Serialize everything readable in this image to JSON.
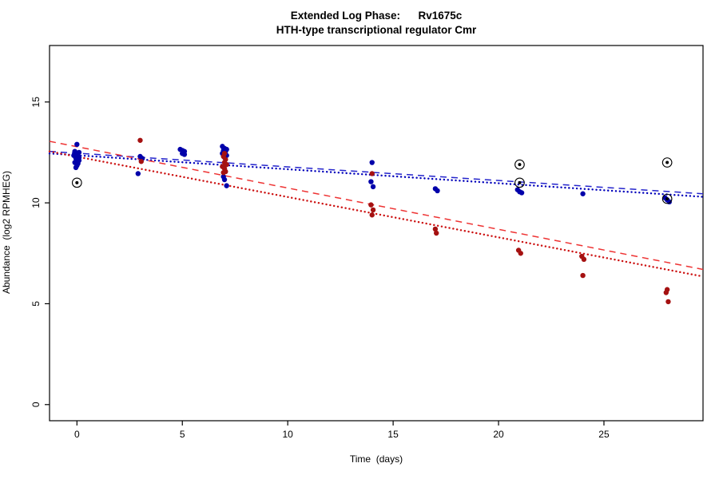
{
  "chart_data": {
    "type": "scatter",
    "title": "Extended Log Phase:      Rv1675c",
    "subtitle": "HTH-type transcriptional regulator Cmr",
    "xlabel": "Time  (days)",
    "ylabel": "Abundance  (log2 RPMHEG)",
    "xlim": [
      -1.3,
      29.7
    ],
    "ylim": [
      -0.8,
      17.8
    ],
    "xticks": [
      0,
      5,
      10,
      15,
      20,
      25
    ],
    "yticks": [
      0,
      5,
      10,
      15
    ],
    "grid": false,
    "legend": "none",
    "point_color_blue": "#0000AA",
    "point_color_red": "#A51111",
    "series": [
      {
        "name": "blue-condition",
        "color": "#0000AA",
        "points": [
          [
            0,
            12.9
          ],
          [
            -0.1,
            12.55
          ],
          [
            0.1,
            12.5
          ],
          [
            0,
            12.45
          ],
          [
            -0.15,
            12.35
          ],
          [
            0.05,
            12.3
          ],
          [
            0.1,
            12.25
          ],
          [
            -0.05,
            12.2
          ],
          [
            0,
            12.15
          ],
          [
            0.1,
            12.1
          ],
          [
            -0.1,
            12.0
          ],
          [
            0.05,
            11.95
          ],
          [
            0,
            11.85
          ],
          [
            -0.05,
            11.75
          ],
          [
            3,
            12.3
          ],
          [
            3.1,
            12.2
          ],
          [
            2.9,
            11.45
          ],
          [
            4.9,
            12.65
          ],
          [
            5,
            12.6
          ],
          [
            5.1,
            12.55
          ],
          [
            5,
            12.45
          ],
          [
            5.1,
            12.4
          ],
          [
            6.9,
            12.8
          ],
          [
            7,
            12.7
          ],
          [
            7.1,
            12.65
          ],
          [
            6.95,
            12.6
          ],
          [
            7.05,
            12.55
          ],
          [
            7,
            12.5
          ],
          [
            6.9,
            12.45
          ],
          [
            7.1,
            12.35
          ],
          [
            7,
            12.25
          ],
          [
            7.05,
            11.9
          ],
          [
            6.95,
            11.3
          ],
          [
            7,
            11.15
          ],
          [
            7.1,
            10.85
          ],
          [
            14,
            12.0
          ],
          [
            13.95,
            11.05
          ],
          [
            14.05,
            10.8
          ],
          [
            17,
            10.7
          ],
          [
            17.1,
            10.6
          ],
          [
            20.9,
            10.65
          ],
          [
            21,
            10.55
          ],
          [
            21.1,
            10.5
          ],
          [
            24,
            10.45
          ],
          [
            27.9,
            10.25
          ],
          [
            28,
            10.15
          ],
          [
            28.1,
            10.05
          ]
        ]
      },
      {
        "name": "red-condition",
        "color": "#A51111",
        "points": [
          [
            3,
            13.1
          ],
          [
            3.05,
            12.05
          ],
          [
            7,
            12.45
          ],
          [
            6.95,
            12.3
          ],
          [
            7.05,
            12.15
          ],
          [
            7,
            12.0
          ],
          [
            7.1,
            11.9
          ],
          [
            6.9,
            11.8
          ],
          [
            7,
            11.7
          ],
          [
            7.05,
            11.55
          ],
          [
            6.95,
            11.5
          ],
          [
            14,
            11.45
          ],
          [
            13.95,
            9.9
          ],
          [
            14.05,
            9.65
          ],
          [
            14,
            9.4
          ],
          [
            17,
            8.7
          ],
          [
            17.05,
            8.5
          ],
          [
            20.95,
            7.65
          ],
          [
            21.05,
            7.5
          ],
          [
            23.95,
            7.35
          ],
          [
            24.05,
            7.2
          ],
          [
            24,
            6.4
          ],
          [
            28,
            5.7
          ],
          [
            27.95,
            5.55
          ],
          [
            28.05,
            5.1
          ]
        ]
      }
    ],
    "outlier_points": [
      [
        0,
        11.0
      ],
      [
        21,
        11.9
      ],
      [
        21,
        11.0
      ],
      [
        28,
        12.0
      ],
      [
        28,
        10.2
      ]
    ],
    "trend_lines": [
      {
        "name": "blue-dashed-fit",
        "color": "#2424CC",
        "style": "dashed",
        "x": [
          -1.3,
          29.7
        ],
        "y": [
          12.55,
          10.45
        ]
      },
      {
        "name": "blue-dotted-fit",
        "color": "#0000BB",
        "style": "dotted",
        "x": [
          -1.3,
          29.7
        ],
        "y": [
          12.45,
          10.3
        ]
      },
      {
        "name": "red-dashed-fit",
        "color": "#EE3333",
        "style": "dashed",
        "x": [
          -1.3,
          29.7
        ],
        "y": [
          13.05,
          6.7
        ]
      },
      {
        "name": "red-dotted-fit",
        "color": "#CC1111",
        "style": "dotted",
        "x": [
          -1.3,
          29.7
        ],
        "y": [
          12.55,
          6.35
        ]
      }
    ]
  }
}
